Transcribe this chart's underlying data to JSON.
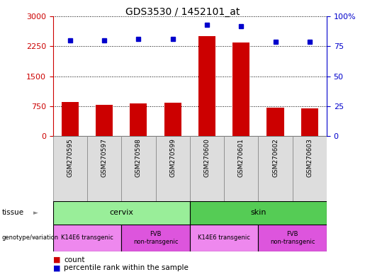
{
  "title": "GDS3530 / 1452101_at",
  "samples": [
    "GSM270595",
    "GSM270597",
    "GSM270598",
    "GSM270599",
    "GSM270600",
    "GSM270601",
    "GSM270602",
    "GSM270603"
  ],
  "counts": [
    850,
    790,
    810,
    830,
    2500,
    2350,
    710,
    690
  ],
  "percentile_ranks": [
    80,
    80,
    81,
    81,
    93,
    92,
    79,
    79
  ],
  "bar_color": "#cc0000",
  "dot_color": "#0000cc",
  "left_axis_color": "#cc0000",
  "right_axis_color": "#0000cc",
  "left_ylim": [
    0,
    3000
  ],
  "right_ylim": [
    0,
    100
  ],
  "left_yticks": [
    0,
    750,
    1500,
    2250,
    3000
  ],
  "right_yticks": [
    0,
    25,
    50,
    75,
    100
  ],
  "right_yticklabels": [
    "0",
    "25",
    "50",
    "75",
    "100%"
  ],
  "tissue_labels": [
    {
      "text": "cervix",
      "start": 0,
      "end": 3,
      "color": "#99ee99"
    },
    {
      "text": "skin",
      "start": 4,
      "end": 7,
      "color": "#55cc55"
    }
  ],
  "genotype_labels": [
    {
      "text": "K14E6 transgenic",
      "start": 0,
      "end": 1,
      "color": "#ee88ee"
    },
    {
      "text": "FVB\nnon-transgenic",
      "start": 2,
      "end": 3,
      "color": "#dd55dd"
    },
    {
      "text": "K14E6 transgenic",
      "start": 4,
      "end": 5,
      "color": "#ee88ee"
    },
    {
      "text": "FVB\nnon-transgenic",
      "start": 6,
      "end": 7,
      "color": "#dd55dd"
    }
  ],
  "legend_count_label": "count",
  "legend_percentile_label": "percentile rank within the sample",
  "background_color": "#ffffff",
  "sample_bg_color": "#dddddd",
  "bar_width": 0.5
}
